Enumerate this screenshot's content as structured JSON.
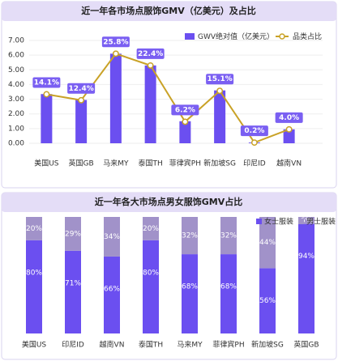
{
  "chart_data": [
    {
      "type": "combo",
      "title": "近一年各市场点服饰GMV（亿美元）及占比",
      "categories": [
        "美国US",
        "英国GB",
        "马来MY",
        "泰国TH",
        "菲律宾PH",
        "新加坡SG",
        "印尼ID",
        "越南VN"
      ],
      "series": [
        {
          "name": "GWV绝对值（亿美元）",
          "type": "bar",
          "color": "#6b4ff0",
          "values": [
            3.35,
            2.95,
            6.1,
            5.3,
            1.5,
            3.6,
            0.05,
            0.95
          ]
        },
        {
          "name": "品类占比",
          "type": "line",
          "axis": "y2",
          "color": "#c9a227",
          "values": [
            14.1,
            12.4,
            25.8,
            22.4,
            6.2,
            15.1,
            0.2,
            4.0
          ],
          "value_labels": [
            "14.1%",
            "12.4%",
            "25.8%",
            "22.4%",
            "6.2%",
            "15.1%",
            "0.2%",
            "4.0%"
          ]
        }
      ],
      "ylim": [
        0,
        7
      ],
      "yticks": [
        {
          "value": 0,
          "label": "0.00"
        },
        {
          "value": 1,
          "label": "1.00"
        },
        {
          "value": 2,
          "label": "2.00"
        },
        {
          "value": 3,
          "label": "3.00"
        },
        {
          "value": 4,
          "label": "4.00"
        },
        {
          "value": 5,
          "label": "5.00"
        },
        {
          "value": 6,
          "label": "6.00"
        },
        {
          "value": 7,
          "label": "7.00"
        }
      ],
      "y2lim": [
        0,
        29.6
      ],
      "grid": true,
      "legend": "top-right"
    },
    {
      "type": "stacked_bar",
      "title": "近一年各大市场点男女服饰GMV占比",
      "categories": [
        "美国US",
        "印尼ID",
        "越南VN",
        "泰国TH",
        "马来MY",
        "菲律宾PH",
        "新加坡SG",
        "英国GB"
      ],
      "series": [
        {
          "name": "女士服装",
          "color": "#6b4ff0",
          "values": [
            80,
            71,
            66,
            80,
            68,
            68,
            56,
            94
          ],
          "value_labels": [
            "80%",
            "71%",
            "66%",
            "80%",
            "68%",
            "68%",
            "56%",
            "94%"
          ]
        },
        {
          "name": "男士服装",
          "color": "#a192c9",
          "values": [
            20,
            29,
            34,
            20,
            32,
            32,
            44,
            6
          ],
          "value_labels": [
            "20%",
            "29%",
            "34%",
            "20%",
            "32%",
            "32%",
            "44%",
            "6%"
          ]
        }
      ],
      "ylim": [
        0,
        100
      ],
      "legend": "top-right"
    }
  ]
}
